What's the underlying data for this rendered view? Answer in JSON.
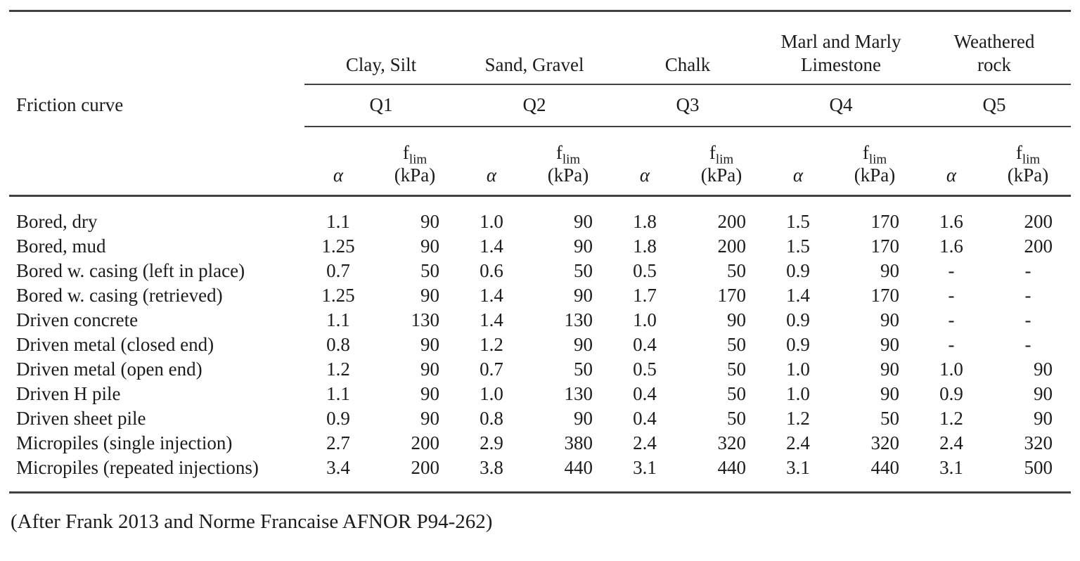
{
  "caption": "(After Frank 2013 and Norme Francaise AFNOR P94-262)",
  "colors": {
    "text": "#1c1c1c",
    "rule": "#414141",
    "background": "#ffffff"
  },
  "table": {
    "row_header_label": "Friction curve",
    "groups": [
      {
        "soil": "Clay, Silt",
        "curve": "Q1"
      },
      {
        "soil": "Sand, Gravel",
        "curve": "Q2"
      },
      {
        "soil": "Chalk",
        "curve": "Q3"
      },
      {
        "soil": "Marl and Marly Limestone",
        "curve": "Q4"
      },
      {
        "soil": "Weathered rock",
        "curve": "Q5"
      }
    ],
    "subheader": {
      "alpha": "α",
      "flim_base": "f",
      "flim_sub": "lim",
      "flim_unit": "(kPa)"
    },
    "rows": [
      {
        "pile": "Bored, dry",
        "values": [
          "1.1",
          "90",
          "1.0",
          "90",
          "1.8",
          "200",
          "1.5",
          "170",
          "1.6",
          "200"
        ]
      },
      {
        "pile": "Bored, mud",
        "values": [
          "1.25",
          "90",
          "1.4",
          "90",
          "1.8",
          "200",
          "1.5",
          "170",
          "1.6",
          "200"
        ]
      },
      {
        "pile": "Bored w. casing (left in place)",
        "values": [
          "0.7",
          "50",
          "0.6",
          "50",
          "0.5",
          "50",
          "0.9",
          "90",
          "-",
          "-"
        ]
      },
      {
        "pile": "Bored w. casing (retrieved)",
        "values": [
          "1.25",
          "90",
          "1.4",
          "90",
          "1.7",
          "170",
          "1.4",
          "170",
          "-",
          "-"
        ]
      },
      {
        "pile": "Driven concrete",
        "values": [
          "1.1",
          "130",
          "1.4",
          "130",
          "1.0",
          "90",
          "0.9",
          "90",
          "-",
          "-"
        ]
      },
      {
        "pile": "Driven metal (closed end)",
        "values": [
          "0.8",
          "90",
          "1.2",
          "90",
          "0.4",
          "50",
          "0.9",
          "90",
          "-",
          "-"
        ]
      },
      {
        "pile": "Driven metal (open end)",
        "values": [
          "1.2",
          "90",
          "0.7",
          "50",
          "0.5",
          "50",
          "1.0",
          "90",
          "1.0",
          "90"
        ]
      },
      {
        "pile": "Driven H pile",
        "values": [
          "1.1",
          "90",
          "1.0",
          "130",
          "0.4",
          "50",
          "1.0",
          "90",
          "0.9",
          "90"
        ]
      },
      {
        "pile": "Driven sheet pile",
        "values": [
          "0.9",
          "90",
          "0.8",
          "90",
          "0.4",
          "50",
          "1.2",
          "50",
          "1.2",
          "90"
        ]
      },
      {
        "pile": "Micropiles (single injection)",
        "values": [
          "2.7",
          "200",
          "2.9",
          "380",
          "2.4",
          "320",
          "2.4",
          "320",
          "2.4",
          "320"
        ]
      },
      {
        "pile": "Micropiles (repeated injections)",
        "values": [
          "3.4",
          "200",
          "3.8",
          "440",
          "3.1",
          "440",
          "3.1",
          "440",
          "3.1",
          "500"
        ]
      }
    ]
  }
}
